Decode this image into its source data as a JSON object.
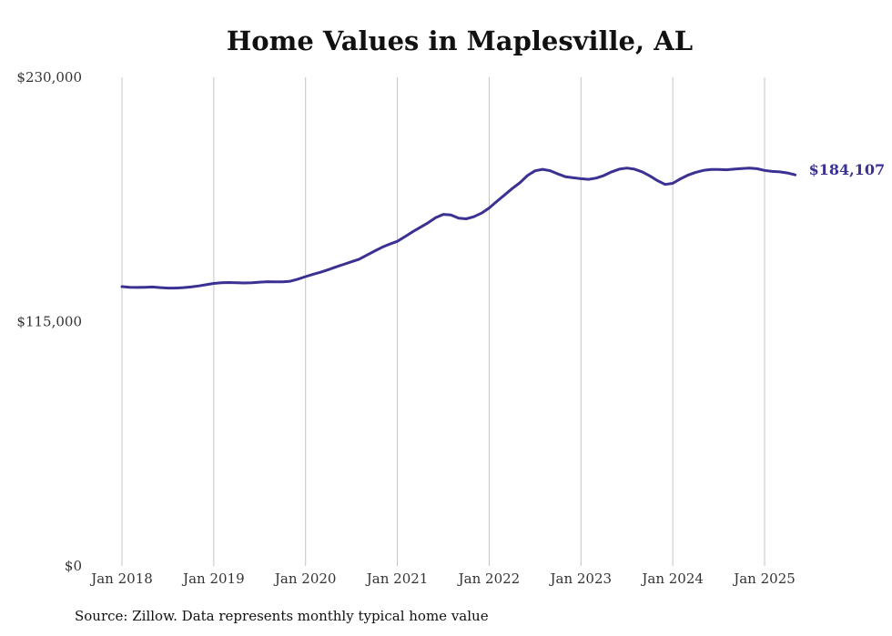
{
  "chart_data": {
    "type": "line",
    "title": "Home Values in Maplesville, AL",
    "xlabel": "",
    "ylabel": "",
    "ylim": [
      0,
      230000
    ],
    "y_ticks": [
      {
        "value": 0,
        "label": "$0"
      },
      {
        "value": 115000,
        "label": "$115,000"
      },
      {
        "value": 230000,
        "label": "$230,000"
      }
    ],
    "x_ticks": [
      {
        "value": 2018.0,
        "label": "Jan 2018"
      },
      {
        "value": 2019.0,
        "label": "Jan 2019"
      },
      {
        "value": 2020.0,
        "label": "Jan 2020"
      },
      {
        "value": 2021.0,
        "label": "Jan 2021"
      },
      {
        "value": 2022.0,
        "label": "Jan 2022"
      },
      {
        "value": 2023.0,
        "label": "Jan 2023"
      },
      {
        "value": 2024.0,
        "label": "Jan 2024"
      },
      {
        "value": 2025.0,
        "label": "Jan 2025"
      }
    ],
    "grid": "vertical",
    "color": "#3a3193",
    "end_label": "$184,107",
    "series": [
      {
        "x": [
          2018.0,
          2018.083,
          2018.167,
          2018.25,
          2018.333,
          2018.417,
          2018.5,
          2018.583,
          2018.667,
          2018.75,
          2018.833,
          2018.917,
          2019.0,
          2019.083,
          2019.167,
          2019.25,
          2019.333,
          2019.417,
          2019.5,
          2019.583,
          2019.667,
          2019.75,
          2019.833,
          2019.917,
          2020.0,
          2020.083,
          2020.167,
          2020.25,
          2020.333,
          2020.417,
          2020.5,
          2020.583,
          2020.667,
          2020.75,
          2020.833,
          2020.917,
          2021.0,
          2021.083,
          2021.167,
          2021.25,
          2021.333,
          2021.417,
          2021.5,
          2021.583,
          2021.667,
          2021.75,
          2021.833,
          2021.917,
          2022.0,
          2022.083,
          2022.167,
          2022.25,
          2022.333,
          2022.417,
          2022.5,
          2022.583,
          2022.667,
          2022.75,
          2022.833,
          2022.917,
          2023.0,
          2023.083,
          2023.167,
          2023.25,
          2023.333,
          2023.417,
          2023.5,
          2023.583,
          2023.667,
          2023.75,
          2023.833,
          2023.917,
          2024.0,
          2024.083,
          2024.167,
          2024.25,
          2024.333,
          2024.417,
          2024.5,
          2024.583,
          2024.667,
          2024.75,
          2024.833,
          2024.917,
          2025.0,
          2025.083,
          2025.167,
          2025.25,
          2025.333
        ],
        "values": [
          131500,
          131200,
          131100,
          131200,
          131300,
          131000,
          130800,
          130800,
          131000,
          131300,
          131800,
          132400,
          133000,
          133300,
          133400,
          133300,
          133200,
          133300,
          133600,
          133800,
          133700,
          133700,
          134000,
          135000,
          136200,
          137300,
          138300,
          139500,
          140800,
          142000,
          143200,
          144400,
          146300,
          148200,
          150000,
          151500,
          152800,
          155000,
          157300,
          159400,
          161500,
          163900,
          165500,
          165200,
          163700,
          163400,
          164400,
          166100,
          168500,
          171600,
          174600,
          177600,
          180300,
          183800,
          186000,
          186700,
          186000,
          184500,
          183200,
          182700,
          182300,
          182000,
          182600,
          183800,
          185500,
          186800,
          187300,
          186800,
          185500,
          183600,
          181400,
          179600,
          180100,
          182200,
          184000,
          185300,
          186200,
          186600,
          186600,
          186500,
          186800,
          187100,
          187300,
          187000,
          186200,
          185700,
          185500,
          185000,
          184107
        ]
      }
    ]
  },
  "source_note": "Source: Zillow. Data represents monthly typical home value"
}
